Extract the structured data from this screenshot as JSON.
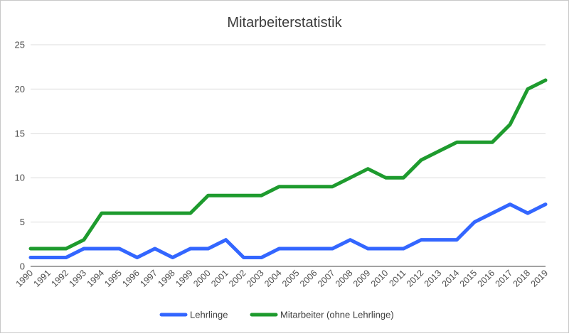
{
  "chart_data": {
    "type": "line",
    "title": "Mitarbeiterstatistik",
    "xlabel": "",
    "ylabel": "",
    "ylim": [
      0,
      25
    ],
    "yticks": [
      0,
      5,
      10,
      15,
      20,
      25
    ],
    "grid": true,
    "legend_position": "bottom",
    "categories": [
      "1990",
      "1991",
      "1992",
      "1993",
      "1994",
      "1995",
      "1996",
      "1997",
      "1998",
      "1999",
      "2000",
      "2001",
      "2002",
      "2003",
      "2004",
      "2005",
      "2006",
      "2007",
      "2008",
      "2009",
      "2010",
      "2011",
      "2012",
      "2013",
      "2014",
      "2015",
      "2016",
      "2017",
      "2018",
      "2019"
    ],
    "series": [
      {
        "name": "Lehrlinge",
        "color": "#3366ff",
        "values": [
          1,
          1,
          1,
          2,
          2,
          2,
          1,
          2,
          1,
          2,
          2,
          3,
          1,
          1,
          2,
          2,
          2,
          2,
          3,
          2,
          2,
          2,
          3,
          3,
          3,
          5,
          6,
          7,
          6,
          7
        ]
      },
      {
        "name": "Mitarbeiter (ohne Lehrlinge)",
        "color": "#1e9b2e",
        "values": [
          2,
          2,
          2,
          3,
          6,
          6,
          6,
          6,
          6,
          6,
          8,
          8,
          8,
          8,
          9,
          9,
          9,
          9,
          10,
          11,
          10,
          10,
          12,
          13,
          14,
          14,
          14,
          16,
          20,
          21
        ]
      }
    ]
  }
}
